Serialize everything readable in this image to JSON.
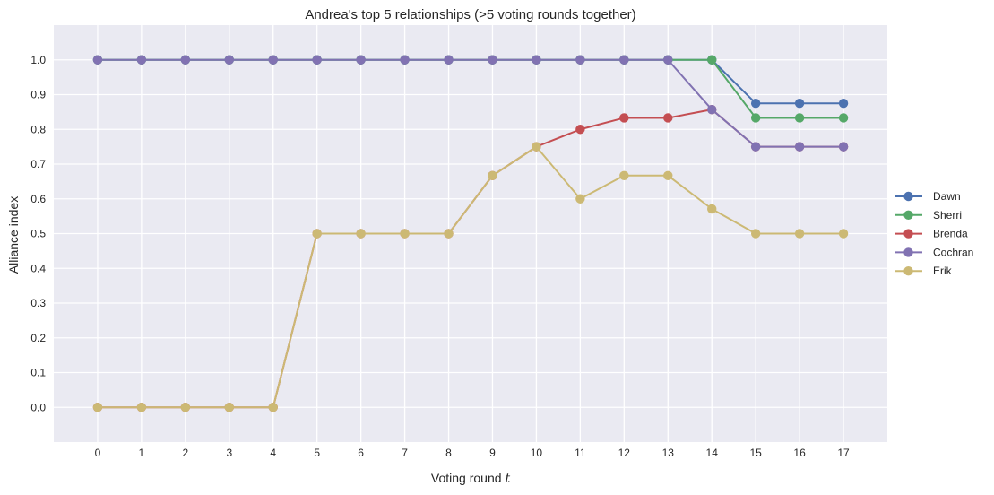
{
  "chart_data": {
    "type": "line",
    "title": "Andrea's top 5 relationships (>5 voting rounds together)",
    "xlabel": "Voting round",
    "xlabel_var": "t",
    "ylabel": "Alliance index",
    "xlim": [
      -1,
      18
    ],
    "ylim": [
      -0.1,
      1.1
    ],
    "x": [
      0,
      1,
      2,
      3,
      4,
      5,
      6,
      7,
      8,
      9,
      10,
      11,
      12,
      13,
      14,
      15,
      16,
      17
    ],
    "y_ticks": [
      0.0,
      0.1,
      0.2,
      0.3,
      0.4,
      0.5,
      0.6,
      0.7,
      0.8,
      0.9,
      1.0
    ],
    "y_tick_labels": [
      "0.0",
      "0.1",
      "0.2",
      "0.3",
      "0.4",
      "0.5",
      "0.6",
      "0.7",
      "0.8",
      "0.9",
      "1.0"
    ],
    "x_tick_labels": [
      "0",
      "1",
      "2",
      "3",
      "4",
      "5",
      "6",
      "7",
      "8",
      "9",
      "10",
      "11",
      "12",
      "13",
      "14",
      "15",
      "16",
      "17"
    ],
    "grid": true,
    "legend_position": "right",
    "series": [
      {
        "name": "Dawn",
        "color": "#4c72b0",
        "values": [
          1.0,
          1.0,
          1.0,
          1.0,
          1.0,
          1.0,
          1.0,
          1.0,
          1.0,
          1.0,
          1.0,
          1.0,
          1.0,
          1.0,
          1.0,
          0.875,
          0.875,
          0.875
        ]
      },
      {
        "name": "Sherri",
        "color": "#55a868",
        "values": [
          1.0,
          1.0,
          1.0,
          1.0,
          1.0,
          1.0,
          1.0,
          1.0,
          1.0,
          1.0,
          1.0,
          1.0,
          1.0,
          1.0,
          1.0,
          0.833,
          0.833,
          0.833
        ]
      },
      {
        "name": "Brenda",
        "color": "#c44e52",
        "values": [
          0.0,
          0.0,
          0.0,
          0.0,
          0.0,
          0.5,
          0.5,
          0.5,
          0.5,
          0.667,
          0.75,
          0.8,
          0.833,
          0.833,
          0.857,
          0.75,
          0.75,
          0.75
        ]
      },
      {
        "name": "Cochran",
        "color": "#8172b2",
        "values": [
          1.0,
          1.0,
          1.0,
          1.0,
          1.0,
          1.0,
          1.0,
          1.0,
          1.0,
          1.0,
          1.0,
          1.0,
          1.0,
          1.0,
          0.857,
          0.75,
          0.75,
          0.75
        ]
      },
      {
        "name": "Erik",
        "color": "#ccb974",
        "values": [
          0.0,
          0.0,
          0.0,
          0.0,
          0.0,
          0.5,
          0.5,
          0.5,
          0.5,
          0.667,
          0.75,
          0.6,
          0.667,
          0.667,
          0.571,
          0.5,
          0.5,
          0.5
        ]
      }
    ]
  }
}
